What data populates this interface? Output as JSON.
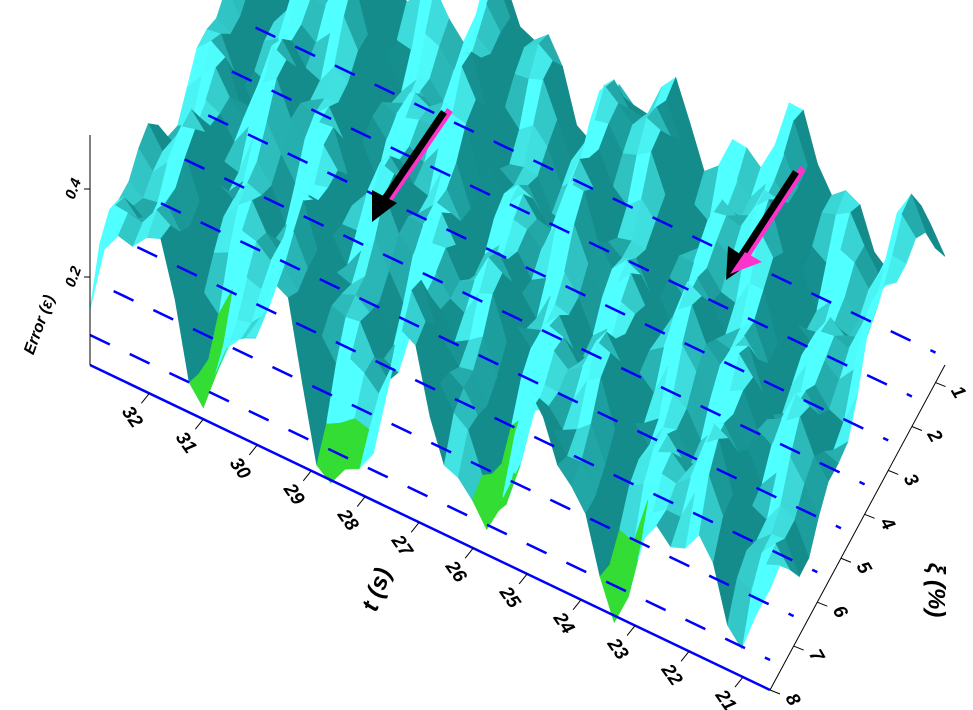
{
  "chart_data": {
    "type": "surface",
    "x_label": "t (s)",
    "y_label": "ξ (%)",
    "z_label": "Error (ε)",
    "xlim": [
      33.1,
      20.5
    ],
    "xticks": [
      32,
      31,
      30,
      29,
      28,
      27,
      26,
      25,
      24,
      23,
      22,
      21
    ],
    "ylim": [
      8,
      0.6
    ],
    "yticks": [
      8,
      7,
      6,
      5,
      4,
      3,
      2,
      1
    ],
    "zlim": [
      0,
      0.5
    ],
    "zticks": [
      0.2,
      0.4
    ],
    "color": "#20c8c8",
    "grid_color": "#0000ff"
  }
}
